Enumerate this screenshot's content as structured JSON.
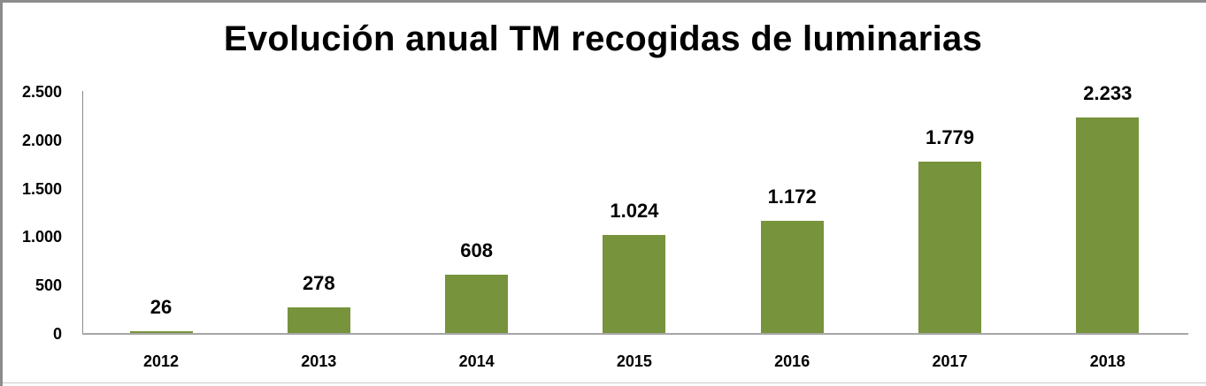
{
  "chart_data": {
    "type": "bar",
    "title": "Evolución anual TM recogidas de luminarias",
    "xlabel": "",
    "ylabel": "",
    "categories": [
      "2012",
      "2013",
      "2014",
      "2015",
      "2016",
      "2017",
      "2018"
    ],
    "values": [
      26,
      278,
      608,
      1024,
      1172,
      1779,
      2233
    ],
    "value_labels": [
      "26",
      "278",
      "608",
      "1.024",
      "1.172",
      "1.779",
      "2.233"
    ],
    "ylim": [
      0,
      2500
    ],
    "yticks": [
      0,
      500,
      1000,
      1500,
      2000,
      2500
    ],
    "ytick_labels": [
      "0",
      "500",
      "1.000",
      "1.500",
      "2.000",
      "2.500"
    ],
    "grid": false,
    "legend": null,
    "bar_color": "#77933C"
  }
}
